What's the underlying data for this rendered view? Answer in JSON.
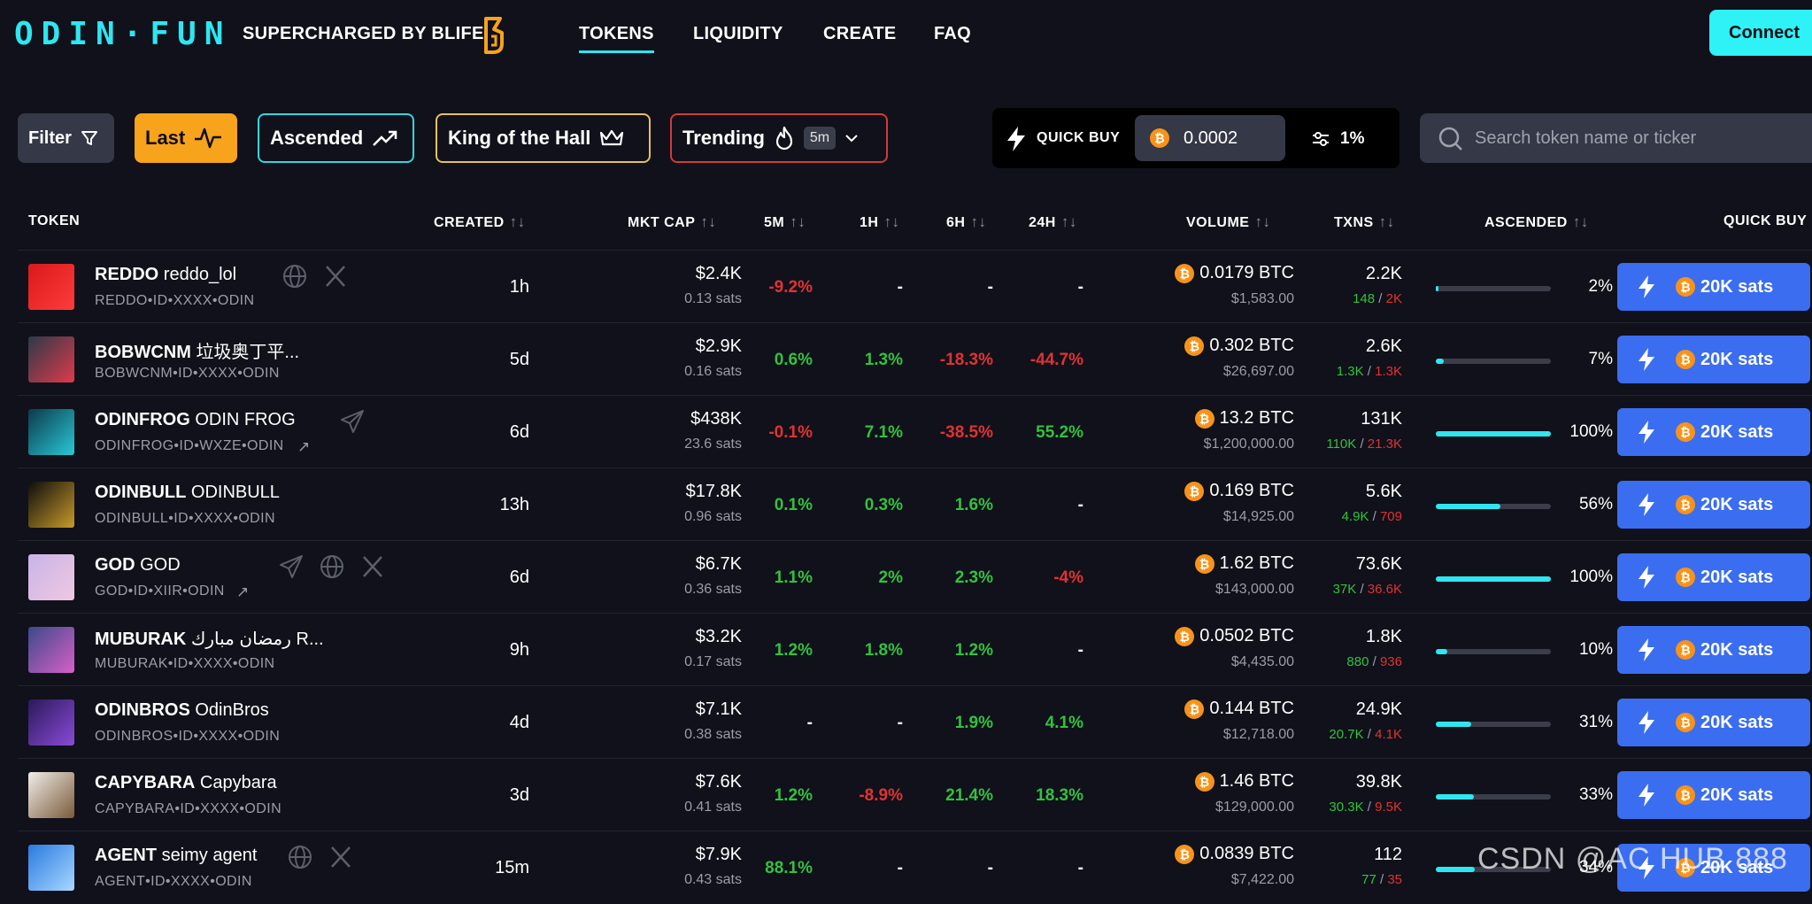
{
  "header": {
    "logo": "ODIN·FUN",
    "powered_by": "SUPERCHARGED BY BLIFE",
    "nav": [
      {
        "label": "TOKENS",
        "active": true
      },
      {
        "label": "LIQUIDITY",
        "active": false
      },
      {
        "label": "CREATE",
        "active": false
      },
      {
        "label": "FAQ",
        "active": false
      }
    ],
    "connect_label": "Connect",
    "accent_color": "#2ee6f0"
  },
  "filters": {
    "filter_label": "Filter",
    "last_label": "Last",
    "ascended_label": "Ascended",
    "king_label": "King of the Hall",
    "trending_label": "Trending",
    "timeframe": "5m"
  },
  "quick_buy": {
    "label": "QUICK BUY",
    "amount": "0.0002",
    "slippage": "1%"
  },
  "search": {
    "placeholder": "Search token name or ticker"
  },
  "table": {
    "headers": {
      "token": "TOKEN",
      "created": "CREATED",
      "mkt_cap": "MKT CAP",
      "m5": "5M",
      "h1": "1H",
      "h6": "6H",
      "h24": "24H",
      "volume": "VOLUME",
      "txns": "TXNS",
      "ascended": "ASCENDED",
      "quick_buy": "QUICK BUY"
    },
    "sort_icon": "↑↓",
    "buy_button_label": "20K sats",
    "rows": [
      {
        "ticker": "REDDO",
        "name": "reddo_lol",
        "id": "REDDO•ID•XXXX•ODIN",
        "created": "1h",
        "mkt_cap": "$2.4K",
        "price": "0.13 sats",
        "m5": "-9.2%",
        "h1": "-",
        "h6": "-",
        "h24": "-",
        "volume_btc": "0.0179 BTC",
        "volume_usd": "$1,583.00",
        "txns": "2.2K",
        "buys": "148",
        "sells": "2K",
        "ascended_pct": 2,
        "ascended_label": "2%"
      },
      {
        "ticker": "BOBWCNM",
        "name": "垃圾奥丁平...",
        "id": "BOBWCNM•ID•XXXX•ODIN",
        "created": "5d",
        "mkt_cap": "$2.9K",
        "price": "0.16 sats",
        "m5": "0.6%",
        "h1": "1.3%",
        "h6": "-18.3%",
        "h24": "-44.7%",
        "volume_btc": "0.302 BTC",
        "volume_usd": "$26,697.00",
        "txns": "2.6K",
        "buys": "1.3K",
        "sells": "1.3K",
        "ascended_pct": 7,
        "ascended_label": "7%"
      },
      {
        "ticker": "ODINFROG",
        "name": "ODIN FROG",
        "id": "ODINFROG•ID•WXZE•ODIN",
        "created": "6d",
        "mkt_cap": "$438K",
        "price": "23.6 sats",
        "m5": "-0.1%",
        "h1": "7.1%",
        "h6": "-38.5%",
        "h24": "55.2%",
        "volume_btc": "13.2 BTC",
        "volume_usd": "$1,200,000.00",
        "txns": "131K",
        "buys": "110K",
        "sells": "21.3K",
        "ascended_pct": 100,
        "ascended_label": "100%"
      },
      {
        "ticker": "ODINBULL",
        "name": "ODINBULL",
        "id": "ODINBULL•ID•XXXX•ODIN",
        "created": "13h",
        "mkt_cap": "$17.8K",
        "price": "0.96 sats",
        "m5": "0.1%",
        "h1": "0.3%",
        "h6": "1.6%",
        "h24": "-",
        "volume_btc": "0.169 BTC",
        "volume_usd": "$14,925.00",
        "txns": "5.6K",
        "buys": "4.9K",
        "sells": "709",
        "ascended_pct": 56,
        "ascended_label": "56%"
      },
      {
        "ticker": "GOD",
        "name": "GOD",
        "id": "GOD•ID•XIIR•ODIN",
        "created": "6d",
        "mkt_cap": "$6.7K",
        "price": "0.36 sats",
        "m5": "1.1%",
        "h1": "2%",
        "h6": "2.3%",
        "h24": "-4%",
        "volume_btc": "1.62 BTC",
        "volume_usd": "$143,000.00",
        "txns": "73.6K",
        "buys": "37K",
        "sells": "36.6K",
        "ascended_pct": 100,
        "ascended_label": "100%"
      },
      {
        "ticker": "MUBURAK",
        "name": "رمضان مبارك R...",
        "id": "MUBURAK•ID•XXXX•ODIN",
        "created": "9h",
        "mkt_cap": "$3.2K",
        "price": "0.17 sats",
        "m5": "1.2%",
        "h1": "1.8%",
        "h6": "1.2%",
        "h24": "-",
        "volume_btc": "0.0502 BTC",
        "volume_usd": "$4,435.00",
        "txns": "1.8K",
        "buys": "880",
        "sells": "936",
        "ascended_pct": 10,
        "ascended_label": "10%"
      },
      {
        "ticker": "ODINBROS",
        "name": "OdinBros",
        "id": "ODINBROS•ID•XXXX•ODIN",
        "created": "4d",
        "mkt_cap": "$7.1K",
        "price": "0.38 sats",
        "m5": "-",
        "h1": "-",
        "h6": "1.9%",
        "h24": "4.1%",
        "volume_btc": "0.144 BTC",
        "volume_usd": "$12,718.00",
        "txns": "24.9K",
        "buys": "20.7K",
        "sells": "4.1K",
        "ascended_pct": 31,
        "ascended_label": "31%"
      },
      {
        "ticker": "CAPYBARA",
        "name": "Capybara",
        "id": "CAPYBARA•ID•XXXX•ODIN",
        "created": "3d",
        "mkt_cap": "$7.6K",
        "price": "0.41 sats",
        "m5": "1.2%",
        "h1": "-8.9%",
        "h6": "21.4%",
        "h24": "18.3%",
        "volume_btc": "1.46 BTC",
        "volume_usd": "$129,000.00",
        "txns": "39.8K",
        "buys": "30.3K",
        "sells": "9.5K",
        "ascended_pct": 33,
        "ascended_label": "33%"
      },
      {
        "ticker": "AGENT",
        "name": "seimy agent",
        "id": "AGENT•ID•XXXX•ODIN",
        "created": "15m",
        "mkt_cap": "$7.9K",
        "price": "0.43 sats",
        "m5": "88.1%",
        "h1": "-",
        "h6": "-",
        "h24": "-",
        "volume_btc": "0.0839 BTC",
        "volume_usd": "$7,422.00",
        "txns": "112",
        "buys": "77",
        "sells": "35",
        "ascended_pct": 34,
        "ascended_label": "34%"
      }
    ]
  },
  "watermark": "CSDN @AC HUB 888"
}
